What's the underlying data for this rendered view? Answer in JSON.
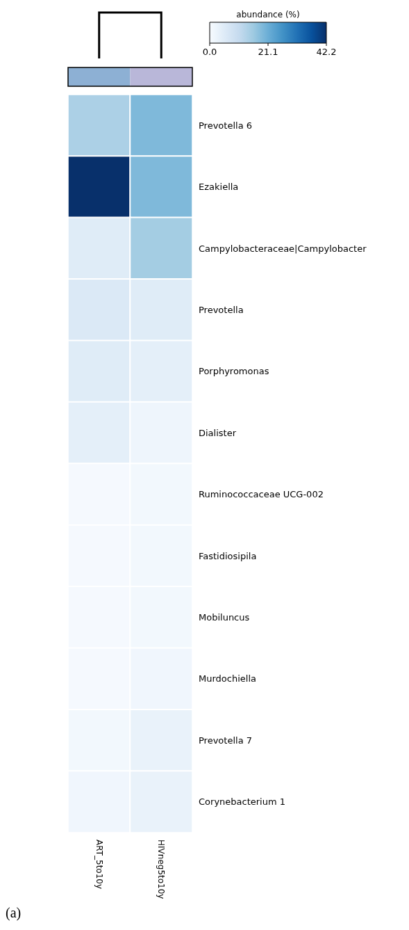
{
  "chart_data": {
    "type": "heatmap",
    "clabel": "abundance (%)",
    "categories": [
      "ART_5to10y",
      "HIVneg5to10y"
    ],
    "y_categories": [
      "Prevotella 6",
      "Ezakiella",
      "Campylobacteraceae|Campylobacter",
      "Prevotella",
      "Porphyromonas",
      "Dialister",
      "Ruminococcaceae UCG-002",
      "Fastidiosipila",
      "Mobiluncus",
      "Murdochiella",
      "Prevotella 7",
      "Corynebacterium 1"
    ],
    "cells": [
      [
        14,
        19
      ],
      [
        42.2,
        19
      ],
      [
        5,
        15
      ],
      [
        6,
        5
      ],
      [
        5,
        4
      ],
      [
        4,
        2
      ],
      [
        0.5,
        1
      ],
      [
        0.5,
        1
      ],
      [
        0.5,
        1
      ],
      [
        0.5,
        1.5
      ],
      [
        1,
        3
      ],
      [
        1.5,
        3
      ]
    ],
    "clim": [
      0,
      42.2
    ],
    "cticks": [
      {
        "value": 0,
        "label": "0.0"
      },
      {
        "value": 21.1,
        "label": "21.1"
      },
      {
        "value": 42.2,
        "label": "42.2"
      }
    ],
    "annotations": [
      "(a)"
    ]
  }
}
